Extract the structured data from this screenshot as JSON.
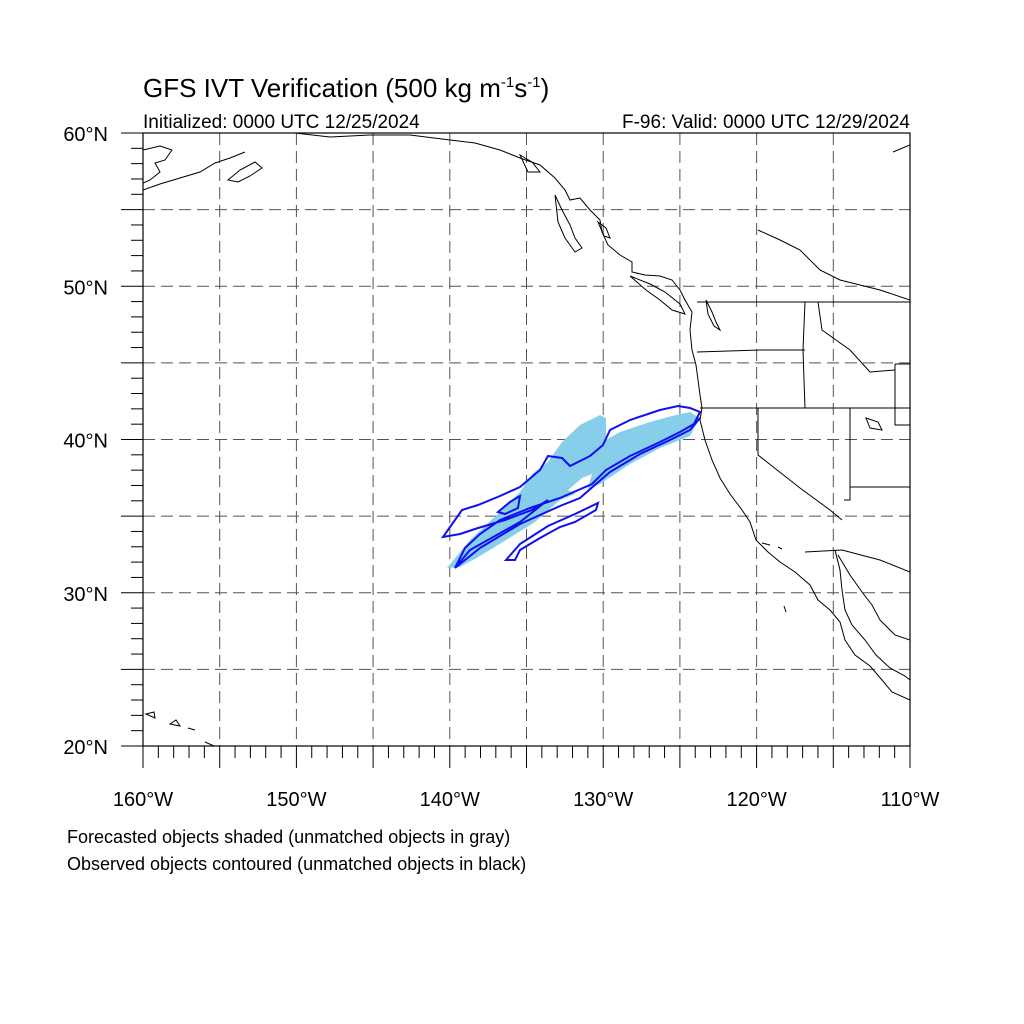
{
  "title": {
    "main": "GFS IVT Verification (500 kg m",
    "sup1": "-1",
    "mid": "s",
    "sup2": "-1",
    "end": ")"
  },
  "initialized": "Initialized: 0000 UTC 12/25/2024",
  "valid": "F-96: Valid: 0000 UTC 12/29/2024",
  "map": {
    "lon_range": [
      -160,
      -110
    ],
    "lat_range": [
      20,
      60
    ],
    "grid_interval_deg": 5,
    "lat_labels": [
      {
        "lat": 60,
        "text": "60°N"
      },
      {
        "lat": 50,
        "text": "50°N"
      },
      {
        "lat": 40,
        "text": "40°N"
      },
      {
        "lat": 30,
        "text": "30°N"
      },
      {
        "lat": 20,
        "text": "20°N"
      }
    ],
    "lon_labels": [
      {
        "lon": -160,
        "text": "160°W"
      },
      {
        "lon": -150,
        "text": "150°W"
      },
      {
        "lon": -140,
        "text": "140°W"
      },
      {
        "lon": -130,
        "text": "130°W"
      },
      {
        "lon": -120,
        "text": "120°W"
      },
      {
        "lon": -110,
        "text": "110°W"
      }
    ],
    "colors": {
      "forecast_fill": "#87ceeb",
      "observed_contour": "#1010ee",
      "coastline": "#000000",
      "grid": "#555555"
    }
  },
  "captions": {
    "line1": "Forecasted objects shaded (unmatched objects in gray)",
    "line2": "Observed objects contoured (unmatched objects in black)"
  }
}
